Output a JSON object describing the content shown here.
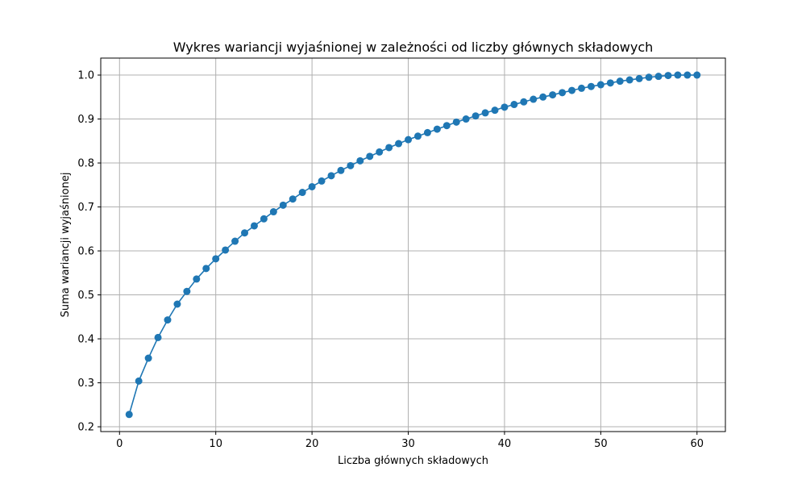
{
  "chart_data": {
    "type": "line",
    "title": "Wykres wariancji wyjaśnionej w zależności od liczby głównych składowych",
    "xlabel": "Liczba głównych składowych",
    "ylabel": "Suma wariancji wyjaśnionej",
    "xlim": [
      -1.95,
      62.95
    ],
    "ylim": [
      0.1891,
      1.0386
    ],
    "xticks": [
      0,
      10,
      20,
      30,
      40,
      50,
      60
    ],
    "xtick_labels": [
      "0",
      "10",
      "20",
      "30",
      "40",
      "50",
      "60"
    ],
    "yticks": [
      0.2,
      0.3,
      0.4,
      0.5,
      0.6,
      0.7,
      0.8,
      0.9,
      1.0
    ],
    "ytick_labels": [
      "0.2",
      "0.3",
      "0.4",
      "0.5",
      "0.6",
      "0.7",
      "0.8",
      "0.9",
      "1.0"
    ],
    "grid": true,
    "marker": "circle",
    "color": "#1f77b4",
    "series": [
      {
        "x": [
          1,
          2,
          3,
          4,
          5,
          6,
          7,
          8,
          9,
          10,
          11,
          12,
          13,
          14,
          15,
          16,
          17,
          18,
          19,
          20,
          21,
          22,
          23,
          24,
          25,
          26,
          27,
          28,
          29,
          30,
          31,
          32,
          33,
          34,
          35,
          36,
          37,
          38,
          39,
          40,
          41,
          42,
          43,
          44,
          45,
          46,
          47,
          48,
          49,
          50,
          51,
          52,
          53,
          54,
          55,
          56,
          57,
          58,
          59,
          60
        ],
        "y": [
          0.228,
          0.304,
          0.356,
          0.403,
          0.443,
          0.479,
          0.508,
          0.536,
          0.56,
          0.582,
          0.602,
          0.622,
          0.641,
          0.657,
          0.673,
          0.689,
          0.704,
          0.718,
          0.733,
          0.746,
          0.759,
          0.771,
          0.783,
          0.794,
          0.805,
          0.815,
          0.825,
          0.835,
          0.844,
          0.853,
          0.861,
          0.869,
          0.877,
          0.885,
          0.893,
          0.9,
          0.907,
          0.914,
          0.92,
          0.927,
          0.933,
          0.939,
          0.945,
          0.95,
          0.955,
          0.96,
          0.965,
          0.97,
          0.974,
          0.978,
          0.982,
          0.986,
          0.989,
          0.992,
          0.995,
          0.997,
          0.999,
          1.0,
          1.0,
          1.0
        ]
      }
    ]
  }
}
